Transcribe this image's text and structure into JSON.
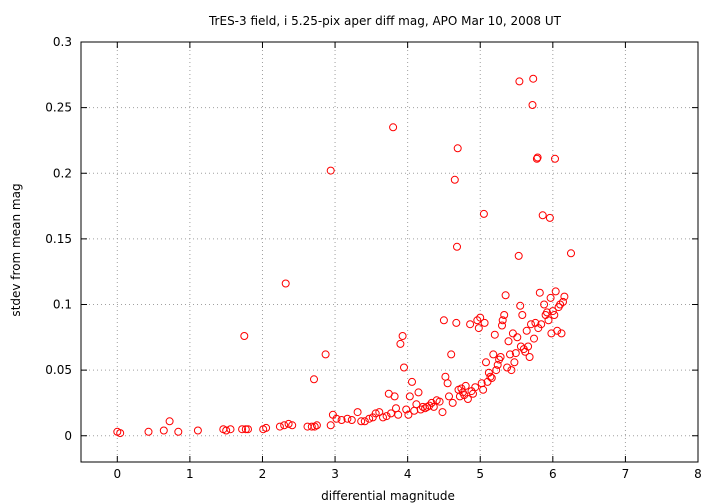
{
  "chart_data": {
    "type": "scatter",
    "title": "TrES-3 field, i 5.25-pix aper diff mag, APO Mar 10, 2008 UT",
    "xlabel": "differential magnitude",
    "ylabel": "stdev from mean mag",
    "xlim": [
      -0.5,
      8
    ],
    "ylim": [
      -0.02,
      0.3
    ],
    "x_ticks": [
      "0",
      "1",
      "2",
      "3",
      "4",
      "5",
      "6",
      "7",
      "8"
    ],
    "y_ticks": [
      "0",
      "0.05",
      "0.1",
      "0.15",
      "0.2",
      "0.25",
      "0.3"
    ],
    "x_tick_values": [
      0,
      1,
      2,
      3,
      4,
      5,
      6,
      7,
      8
    ],
    "y_tick_values": [
      0,
      0.05,
      0.1,
      0.15,
      0.2,
      0.25,
      0.3
    ],
    "grid": true,
    "marker_color": "#ff0000",
    "series": [
      {
        "points": [
          [
            0.0,
            0.003
          ],
          [
            0.04,
            0.002
          ],
          [
            0.43,
            0.003
          ],
          [
            0.64,
            0.004
          ],
          [
            0.72,
            0.011
          ],
          [
            0.84,
            0.003
          ],
          [
            1.11,
            0.004
          ],
          [
            1.46,
            0.005
          ],
          [
            1.5,
            0.004
          ],
          [
            1.56,
            0.005
          ],
          [
            1.72,
            0.005
          ],
          [
            1.77,
            0.005
          ],
          [
            1.8,
            0.005
          ],
          [
            1.75,
            0.076
          ],
          [
            2.01,
            0.005
          ],
          [
            2.05,
            0.006
          ],
          [
            2.24,
            0.007
          ],
          [
            2.3,
            0.008
          ],
          [
            2.36,
            0.009
          ],
          [
            2.41,
            0.008
          ],
          [
            2.32,
            0.116
          ],
          [
            2.62,
            0.007
          ],
          [
            2.68,
            0.007
          ],
          [
            2.72,
            0.007
          ],
          [
            2.75,
            0.008
          ],
          [
            2.71,
            0.043
          ],
          [
            2.87,
            0.062
          ],
          [
            2.94,
            0.008
          ],
          [
            2.97,
            0.016
          ],
          [
            3.02,
            0.013
          ],
          [
            3.09,
            0.012
          ],
          [
            3.17,
            0.013
          ],
          [
            3.23,
            0.012
          ],
          [
            2.94,
            0.202
          ],
          [
            3.31,
            0.018
          ],
          [
            3.36,
            0.011
          ],
          [
            3.41,
            0.011
          ],
          [
            3.47,
            0.013
          ],
          [
            3.52,
            0.014
          ],
          [
            3.56,
            0.017
          ],
          [
            3.61,
            0.018
          ],
          [
            3.66,
            0.014
          ],
          [
            3.71,
            0.015
          ],
          [
            3.74,
            0.032
          ],
          [
            3.77,
            0.017
          ],
          [
            3.8,
            0.235
          ],
          [
            3.82,
            0.03
          ],
          [
            3.84,
            0.021
          ],
          [
            3.87,
            0.016
          ],
          [
            3.9,
            0.07
          ],
          [
            3.93,
            0.076
          ],
          [
            3.95,
            0.052
          ],
          [
            3.98,
            0.02
          ],
          [
            4.01,
            0.016
          ],
          [
            4.03,
            0.03
          ],
          [
            4.06,
            0.041
          ],
          [
            4.09,
            0.019
          ],
          [
            4.12,
            0.024
          ],
          [
            4.15,
            0.033
          ],
          [
            4.18,
            0.02
          ],
          [
            4.21,
            0.022
          ],
          [
            4.24,
            0.021
          ],
          [
            4.27,
            0.022
          ],
          [
            4.3,
            0.023
          ],
          [
            4.33,
            0.025
          ],
          [
            4.36,
            0.022
          ],
          [
            4.4,
            0.027
          ],
          [
            4.44,
            0.026
          ],
          [
            4.48,
            0.018
          ],
          [
            4.5,
            0.088
          ],
          [
            4.52,
            0.045
          ],
          [
            4.55,
            0.04
          ],
          [
            4.57,
            0.03
          ],
          [
            4.6,
            0.062
          ],
          [
            4.62,
            0.025
          ],
          [
            4.65,
            0.195
          ],
          [
            4.67,
            0.086
          ],
          [
            4.68,
            0.144
          ],
          [
            4.69,
            0.219
          ],
          [
            4.7,
            0.035
          ],
          [
            4.72,
            0.03
          ],
          [
            4.74,
            0.036
          ],
          [
            4.76,
            0.033
          ],
          [
            4.78,
            0.031
          ],
          [
            4.8,
            0.038
          ],
          [
            4.83,
            0.028
          ],
          [
            4.86,
            0.085
          ],
          [
            4.88,
            0.034
          ],
          [
            4.9,
            0.032
          ],
          [
            4.93,
            0.037
          ],
          [
            4.96,
            0.088
          ],
          [
            4.98,
            0.082
          ],
          [
            5.0,
            0.09
          ],
          [
            5.02,
            0.04
          ],
          [
            5.04,
            0.035
          ],
          [
            5.05,
            0.169
          ],
          [
            5.06,
            0.086
          ],
          [
            5.08,
            0.056
          ],
          [
            5.1,
            0.041
          ],
          [
            5.12,
            0.048
          ],
          [
            5.14,
            0.045
          ],
          [
            5.16,
            0.044
          ],
          [
            5.18,
            0.062
          ],
          [
            5.2,
            0.077
          ],
          [
            5.22,
            0.05
          ],
          [
            5.24,
            0.054
          ],
          [
            5.26,
            0.058
          ],
          [
            5.28,
            0.06
          ],
          [
            5.3,
            0.084
          ],
          [
            5.31,
            0.088
          ],
          [
            5.33,
            0.092
          ],
          [
            5.35,
            0.107
          ],
          [
            5.37,
            0.052
          ],
          [
            5.39,
            0.072
          ],
          [
            5.41,
            0.062
          ],
          [
            5.43,
            0.05
          ],
          [
            5.45,
            0.078
          ],
          [
            5.47,
            0.056
          ],
          [
            5.49,
            0.063
          ],
          [
            5.51,
            0.075
          ],
          [
            5.53,
            0.137
          ],
          [
            5.54,
            0.27
          ],
          [
            5.55,
            0.099
          ],
          [
            5.56,
            0.068
          ],
          [
            5.58,
            0.092
          ],
          [
            5.6,
            0.066
          ],
          [
            5.62,
            0.064
          ],
          [
            5.64,
            0.08
          ],
          [
            5.66,
            0.068
          ],
          [
            5.68,
            0.06
          ],
          [
            5.7,
            0.085
          ],
          [
            5.72,
            0.252
          ],
          [
            5.73,
            0.272
          ],
          [
            5.74,
            0.074
          ],
          [
            5.76,
            0.086
          ],
          [
            5.78,
            0.211
          ],
          [
            5.79,
            0.212
          ],
          [
            5.8,
            0.082
          ],
          [
            5.82,
            0.109
          ],
          [
            5.84,
            0.085
          ],
          [
            5.86,
            0.168
          ],
          [
            5.88,
            0.1
          ],
          [
            5.9,
            0.092
          ],
          [
            5.92,
            0.094
          ],
          [
            5.94,
            0.088
          ],
          [
            5.96,
            0.166
          ],
          [
            5.97,
            0.105
          ],
          [
            5.98,
            0.078
          ],
          [
            6.0,
            0.095
          ],
          [
            6.02,
            0.092
          ],
          [
            6.03,
            0.211
          ],
          [
            6.04,
            0.11
          ],
          [
            6.06,
            0.08
          ],
          [
            6.08,
            0.098
          ],
          [
            6.1,
            0.1
          ],
          [
            6.12,
            0.078
          ],
          [
            6.14,
            0.102
          ],
          [
            6.16,
            0.106
          ],
          [
            6.25,
            0.139
          ]
        ]
      }
    ]
  }
}
